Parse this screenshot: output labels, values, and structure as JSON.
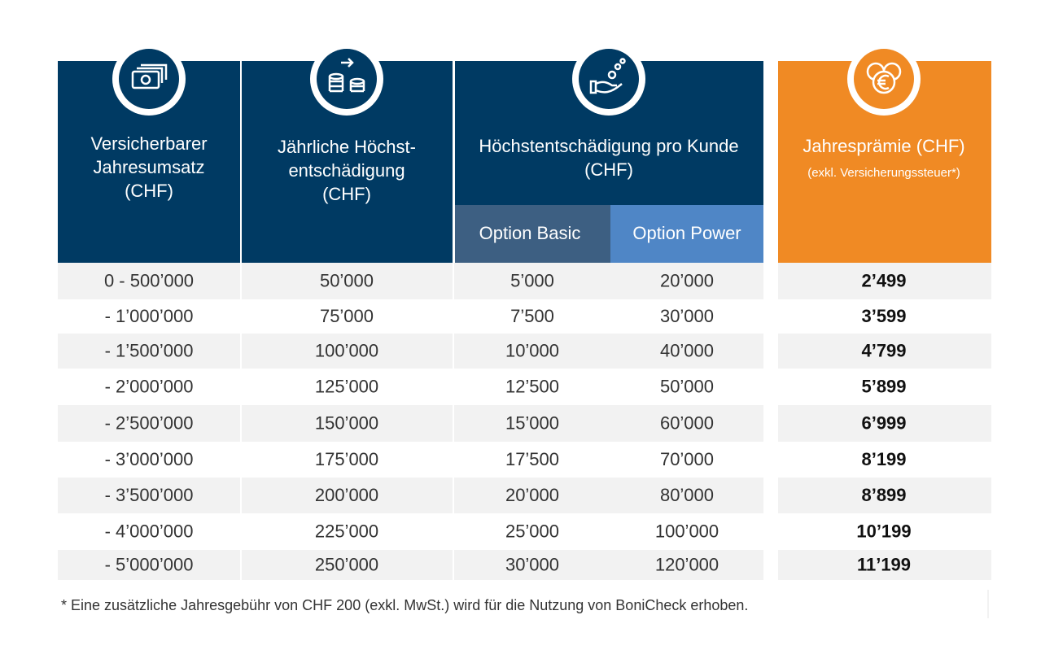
{
  "header": {
    "columns": [
      {
        "lines": [
          "Versicherbarer",
          "Jahresumsatz",
          "(CHF)"
        ]
      },
      {
        "lines": [
          "Jährliche Höchst-",
          "entschädigung",
          "(CHF)"
        ]
      },
      {
        "lines": [
          "Höchstentschädigung pro Kunde",
          "(CHF)"
        ],
        "sub": [
          "Option Basic",
          "Option Power"
        ]
      },
      {
        "lines": [
          "Jahresprämie (CHF)"
        ],
        "note": "(exkl. Versicherungssteuer*)"
      }
    ]
  },
  "table": {
    "rows": [
      [
        "0 - 500’000",
        "50’000",
        "5’000",
        "20’000",
        "2’499"
      ],
      [
        "- 1’000’000",
        "75’000",
        "7’500",
        "30’000",
        "3’599"
      ],
      [
        "- 1’500’000",
        "100’000",
        "10’000",
        "40’000",
        "4’799"
      ],
      [
        "- 2’000’000",
        "125’000",
        "12’500",
        "50’000",
        "5’899"
      ],
      [
        "- 2’500’000",
        "150’000",
        "15’000",
        "60’000",
        "6’999"
      ],
      [
        "- 3’000’000",
        "175’000",
        "17’500",
        "70’000",
        "8’199"
      ],
      [
        "- 3’500’000",
        "200’000",
        "20’000",
        "80’000",
        "8’899"
      ],
      [
        "- 4’000’000",
        "225’000",
        "25’000",
        "100’000",
        "10’199"
      ],
      [
        "- 5’000’000",
        "250’000",
        "30’000",
        "120’000",
        "11’199"
      ]
    ]
  },
  "footnote": "* Eine zusätzliche Jahresgebühr von CHF 200 (exkl. MwSt.) wird für die Nutzung von BoniCheck erhoben."
}
